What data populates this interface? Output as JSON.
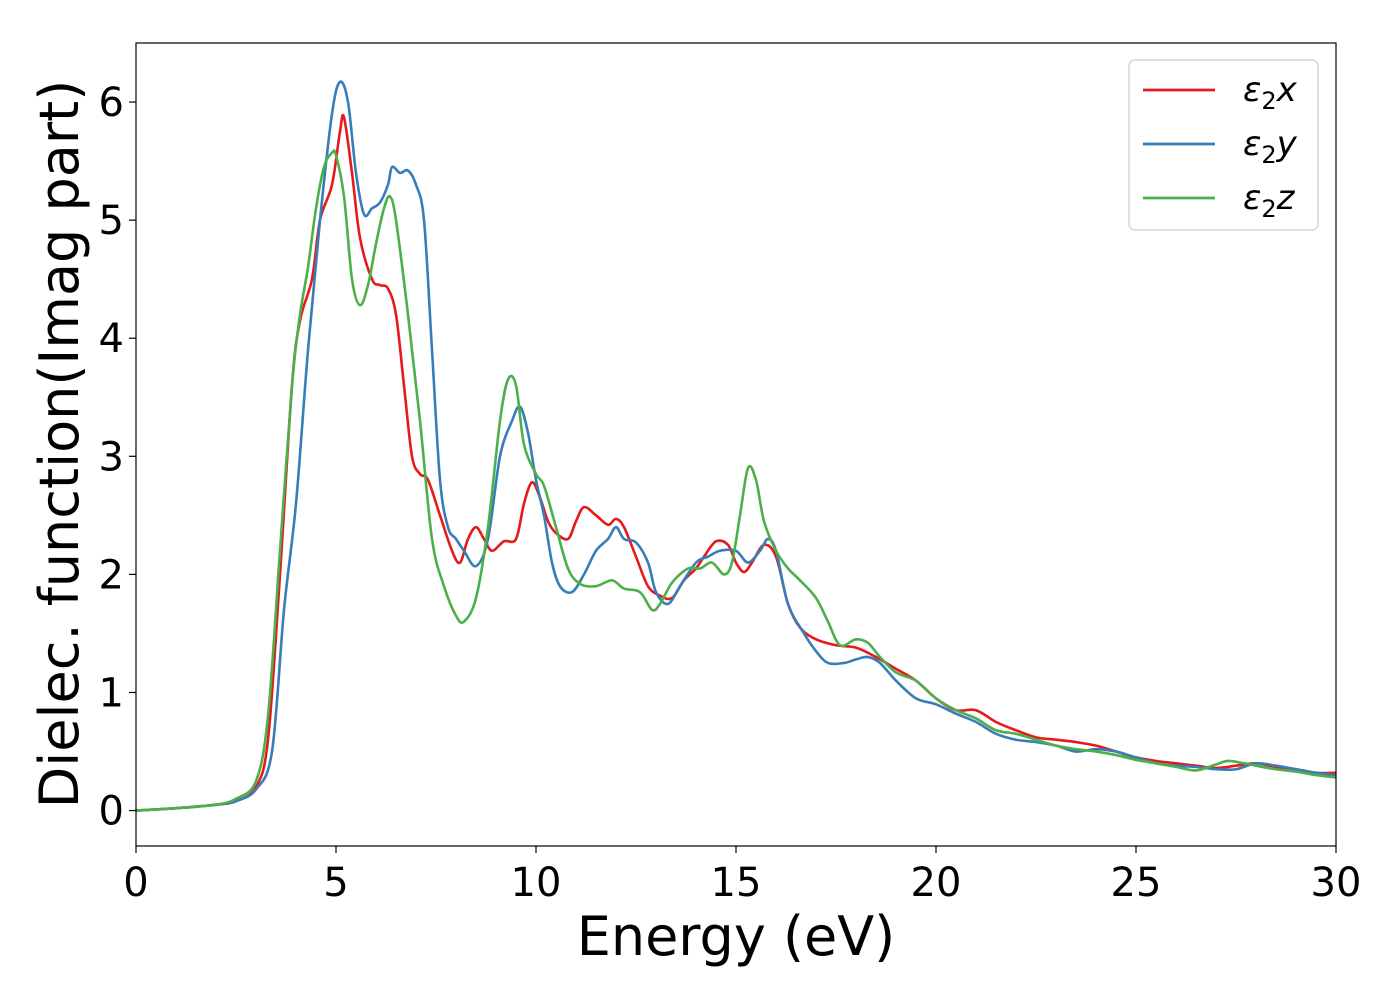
{
  "chart_data": {
    "type": "line",
    "title": "",
    "xlabel": "Energy (eV)",
    "ylabel": "Dielec. function(Imag part)",
    "xlim": [
      0,
      30
    ],
    "ylim": [
      -0.3,
      6.5
    ],
    "xticks": [
      0,
      5,
      10,
      15,
      20,
      25,
      30
    ],
    "yticks": [
      0,
      1,
      2,
      3,
      4,
      5,
      6
    ],
    "grid": false,
    "legend_position": "top-right",
    "series": [
      {
        "name": "ε2x",
        "label_base": "ε",
        "label_sub": "2",
        "label_suffix": "x",
        "color": "#e41a1c",
        "points": [
          [
            0,
            0
          ],
          [
            1,
            0.02
          ],
          [
            2,
            0.05
          ],
          [
            2.5,
            0.08
          ],
          [
            3,
            0.2
          ],
          [
            3.3,
            0.6
          ],
          [
            3.6,
            2.0
          ],
          [
            3.9,
            3.6
          ],
          [
            4.1,
            4.15
          ],
          [
            4.4,
            4.5
          ],
          [
            4.6,
            5.0
          ],
          [
            4.9,
            5.3
          ],
          [
            5.1,
            5.75
          ],
          [
            5.2,
            5.87
          ],
          [
            5.4,
            5.4
          ],
          [
            5.6,
            4.85
          ],
          [
            5.9,
            4.5
          ],
          [
            6.1,
            4.45
          ],
          [
            6.3,
            4.42
          ],
          [
            6.5,
            4.2
          ],
          [
            6.7,
            3.6
          ],
          [
            6.9,
            3.0
          ],
          [
            7.1,
            2.85
          ],
          [
            7.3,
            2.8
          ],
          [
            7.6,
            2.5
          ],
          [
            7.9,
            2.2
          ],
          [
            8.1,
            2.1
          ],
          [
            8.3,
            2.3
          ],
          [
            8.5,
            2.4
          ],
          [
            8.7,
            2.3
          ],
          [
            8.9,
            2.2
          ],
          [
            9.2,
            2.28
          ],
          [
            9.5,
            2.3
          ],
          [
            9.7,
            2.6
          ],
          [
            9.9,
            2.78
          ],
          [
            10.1,
            2.65
          ],
          [
            10.3,
            2.45
          ],
          [
            10.5,
            2.35
          ],
          [
            10.8,
            2.3
          ],
          [
            11.0,
            2.45
          ],
          [
            11.2,
            2.57
          ],
          [
            11.5,
            2.5
          ],
          [
            11.8,
            2.42
          ],
          [
            12.0,
            2.47
          ],
          [
            12.2,
            2.4
          ],
          [
            12.5,
            2.15
          ],
          [
            12.8,
            1.9
          ],
          [
            13.1,
            1.82
          ],
          [
            13.4,
            1.8
          ],
          [
            13.7,
            1.95
          ],
          [
            14.0,
            2.05
          ],
          [
            14.2,
            2.15
          ],
          [
            14.5,
            2.28
          ],
          [
            14.8,
            2.25
          ],
          [
            15.0,
            2.1
          ],
          [
            15.2,
            2.02
          ],
          [
            15.4,
            2.1
          ],
          [
            15.7,
            2.25
          ],
          [
            16.0,
            2.15
          ],
          [
            16.3,
            1.75
          ],
          [
            16.6,
            1.55
          ],
          [
            17.0,
            1.45
          ],
          [
            17.5,
            1.4
          ],
          [
            18.0,
            1.38
          ],
          [
            18.5,
            1.3
          ],
          [
            19.0,
            1.2
          ],
          [
            19.5,
            1.1
          ],
          [
            20.0,
            0.95
          ],
          [
            20.5,
            0.85
          ],
          [
            21.0,
            0.85
          ],
          [
            21.5,
            0.75
          ],
          [
            22.0,
            0.68
          ],
          [
            22.5,
            0.62
          ],
          [
            23.0,
            0.6
          ],
          [
            23.5,
            0.58
          ],
          [
            24.0,
            0.55
          ],
          [
            24.5,
            0.5
          ],
          [
            25.0,
            0.45
          ],
          [
            25.5,
            0.42
          ],
          [
            26.0,
            0.4
          ],
          [
            26.5,
            0.38
          ],
          [
            27.0,
            0.36
          ],
          [
            27.5,
            0.38
          ],
          [
            28.0,
            0.4
          ],
          [
            28.5,
            0.37
          ],
          [
            29.0,
            0.35
          ],
          [
            29.5,
            0.32
          ],
          [
            30.0,
            0.32
          ]
        ]
      },
      {
        "name": "ε2y",
        "label_base": "ε",
        "label_sub": "2",
        "label_suffix": "y",
        "color": "#377eb8",
        "points": [
          [
            0,
            0
          ],
          [
            1,
            0.02
          ],
          [
            2,
            0.05
          ],
          [
            2.5,
            0.08
          ],
          [
            3,
            0.18
          ],
          [
            3.4,
            0.5
          ],
          [
            3.7,
            1.7
          ],
          [
            4.0,
            2.6
          ],
          [
            4.3,
            3.9
          ],
          [
            4.6,
            5.0
          ],
          [
            4.9,
            5.9
          ],
          [
            5.1,
            6.17
          ],
          [
            5.3,
            6.0
          ],
          [
            5.5,
            5.4
          ],
          [
            5.7,
            5.05
          ],
          [
            5.9,
            5.1
          ],
          [
            6.1,
            5.15
          ],
          [
            6.3,
            5.3
          ],
          [
            6.4,
            5.45
          ],
          [
            6.6,
            5.4
          ],
          [
            6.8,
            5.42
          ],
          [
            7.0,
            5.3
          ],
          [
            7.2,
            5.0
          ],
          [
            7.4,
            3.9
          ],
          [
            7.6,
            2.8
          ],
          [
            7.8,
            2.4
          ],
          [
            8.0,
            2.3
          ],
          [
            8.2,
            2.2
          ],
          [
            8.5,
            2.07
          ],
          [
            8.8,
            2.3
          ],
          [
            9.1,
            3.0
          ],
          [
            9.4,
            3.3
          ],
          [
            9.6,
            3.42
          ],
          [
            9.8,
            3.2
          ],
          [
            10.0,
            2.8
          ],
          [
            10.2,
            2.5
          ],
          [
            10.4,
            2.1
          ],
          [
            10.6,
            1.9
          ],
          [
            10.9,
            1.85
          ],
          [
            11.2,
            2.0
          ],
          [
            11.5,
            2.2
          ],
          [
            11.8,
            2.3
          ],
          [
            12.0,
            2.4
          ],
          [
            12.2,
            2.3
          ],
          [
            12.5,
            2.27
          ],
          [
            12.8,
            2.1
          ],
          [
            13.0,
            1.85
          ],
          [
            13.3,
            1.75
          ],
          [
            13.6,
            1.9
          ],
          [
            14.0,
            2.1
          ],
          [
            14.3,
            2.15
          ],
          [
            14.6,
            2.2
          ],
          [
            15.0,
            2.2
          ],
          [
            15.3,
            2.1
          ],
          [
            15.6,
            2.2
          ],
          [
            15.8,
            2.3
          ],
          [
            16.0,
            2.2
          ],
          [
            16.3,
            1.75
          ],
          [
            16.7,
            1.5
          ],
          [
            17.0,
            1.35
          ],
          [
            17.3,
            1.25
          ],
          [
            17.7,
            1.25
          ],
          [
            18.0,
            1.28
          ],
          [
            18.3,
            1.3
          ],
          [
            18.6,
            1.25
          ],
          [
            19.0,
            1.1
          ],
          [
            19.5,
            0.95
          ],
          [
            20.0,
            0.9
          ],
          [
            20.5,
            0.82
          ],
          [
            21.0,
            0.75
          ],
          [
            21.5,
            0.65
          ],
          [
            22.0,
            0.6
          ],
          [
            22.5,
            0.58
          ],
          [
            23.0,
            0.55
          ],
          [
            23.5,
            0.5
          ],
          [
            24.0,
            0.52
          ],
          [
            24.5,
            0.5
          ],
          [
            25.0,
            0.45
          ],
          [
            25.5,
            0.4
          ],
          [
            26.0,
            0.38
          ],
          [
            26.5,
            0.37
          ],
          [
            27.0,
            0.35
          ],
          [
            27.5,
            0.35
          ],
          [
            28.0,
            0.4
          ],
          [
            28.5,
            0.38
          ],
          [
            29.0,
            0.35
          ],
          [
            29.5,
            0.32
          ],
          [
            30.0,
            0.3
          ]
        ]
      },
      {
        "name": "ε2z",
        "label_base": "ε",
        "label_sub": "2",
        "label_suffix": "z",
        "color": "#4daf4a",
        "points": [
          [
            0,
            0
          ],
          [
            1,
            0.02
          ],
          [
            2,
            0.05
          ],
          [
            2.5,
            0.1
          ],
          [
            3,
            0.25
          ],
          [
            3.3,
            0.8
          ],
          [
            3.6,
            2.2
          ],
          [
            3.9,
            3.6
          ],
          [
            4.1,
            4.2
          ],
          [
            4.3,
            4.6
          ],
          [
            4.5,
            5.1
          ],
          [
            4.7,
            5.45
          ],
          [
            4.9,
            5.57
          ],
          [
            5.0,
            5.55
          ],
          [
            5.2,
            5.2
          ],
          [
            5.4,
            4.5
          ],
          [
            5.6,
            4.28
          ],
          [
            5.8,
            4.45
          ],
          [
            6.0,
            4.8
          ],
          [
            6.2,
            5.1
          ],
          [
            6.35,
            5.2
          ],
          [
            6.5,
            5.0
          ],
          [
            6.8,
            4.2
          ],
          [
            7.1,
            3.3
          ],
          [
            7.4,
            2.3
          ],
          [
            7.7,
            1.9
          ],
          [
            8.0,
            1.65
          ],
          [
            8.2,
            1.6
          ],
          [
            8.5,
            1.8
          ],
          [
            8.8,
            2.4
          ],
          [
            9.1,
            3.3
          ],
          [
            9.3,
            3.65
          ],
          [
            9.5,
            3.6
          ],
          [
            9.7,
            3.1
          ],
          [
            10.0,
            2.85
          ],
          [
            10.2,
            2.75
          ],
          [
            10.5,
            2.4
          ],
          [
            10.8,
            2.05
          ],
          [
            11.1,
            1.92
          ],
          [
            11.5,
            1.9
          ],
          [
            11.9,
            1.95
          ],
          [
            12.2,
            1.88
          ],
          [
            12.6,
            1.85
          ],
          [
            12.9,
            1.7
          ],
          [
            13.1,
            1.75
          ],
          [
            13.4,
            1.93
          ],
          [
            13.8,
            2.05
          ],
          [
            14.1,
            2.05
          ],
          [
            14.4,
            2.1
          ],
          [
            14.7,
            2.0
          ],
          [
            14.9,
            2.1
          ],
          [
            15.1,
            2.5
          ],
          [
            15.3,
            2.9
          ],
          [
            15.5,
            2.8
          ],
          [
            15.7,
            2.45
          ],
          [
            16.0,
            2.2
          ],
          [
            16.3,
            2.05
          ],
          [
            16.6,
            1.95
          ],
          [
            17.0,
            1.8
          ],
          [
            17.3,
            1.6
          ],
          [
            17.6,
            1.4
          ],
          [
            18.0,
            1.45
          ],
          [
            18.3,
            1.42
          ],
          [
            18.6,
            1.3
          ],
          [
            19.0,
            1.17
          ],
          [
            19.5,
            1.1
          ],
          [
            20.0,
            0.95
          ],
          [
            20.5,
            0.85
          ],
          [
            21.0,
            0.78
          ],
          [
            21.5,
            0.68
          ],
          [
            22.0,
            0.65
          ],
          [
            22.5,
            0.6
          ],
          [
            23.0,
            0.55
          ],
          [
            23.5,
            0.52
          ],
          [
            24.0,
            0.5
          ],
          [
            24.5,
            0.47
          ],
          [
            25.0,
            0.43
          ],
          [
            25.5,
            0.4
          ],
          [
            26.0,
            0.37
          ],
          [
            26.5,
            0.34
          ],
          [
            27.0,
            0.39
          ],
          [
            27.3,
            0.42
          ],
          [
            27.7,
            0.4
          ],
          [
            28.0,
            0.38
          ],
          [
            28.5,
            0.35
          ],
          [
            29.0,
            0.33
          ],
          [
            29.5,
            0.3
          ],
          [
            30.0,
            0.28
          ]
        ]
      }
    ]
  }
}
